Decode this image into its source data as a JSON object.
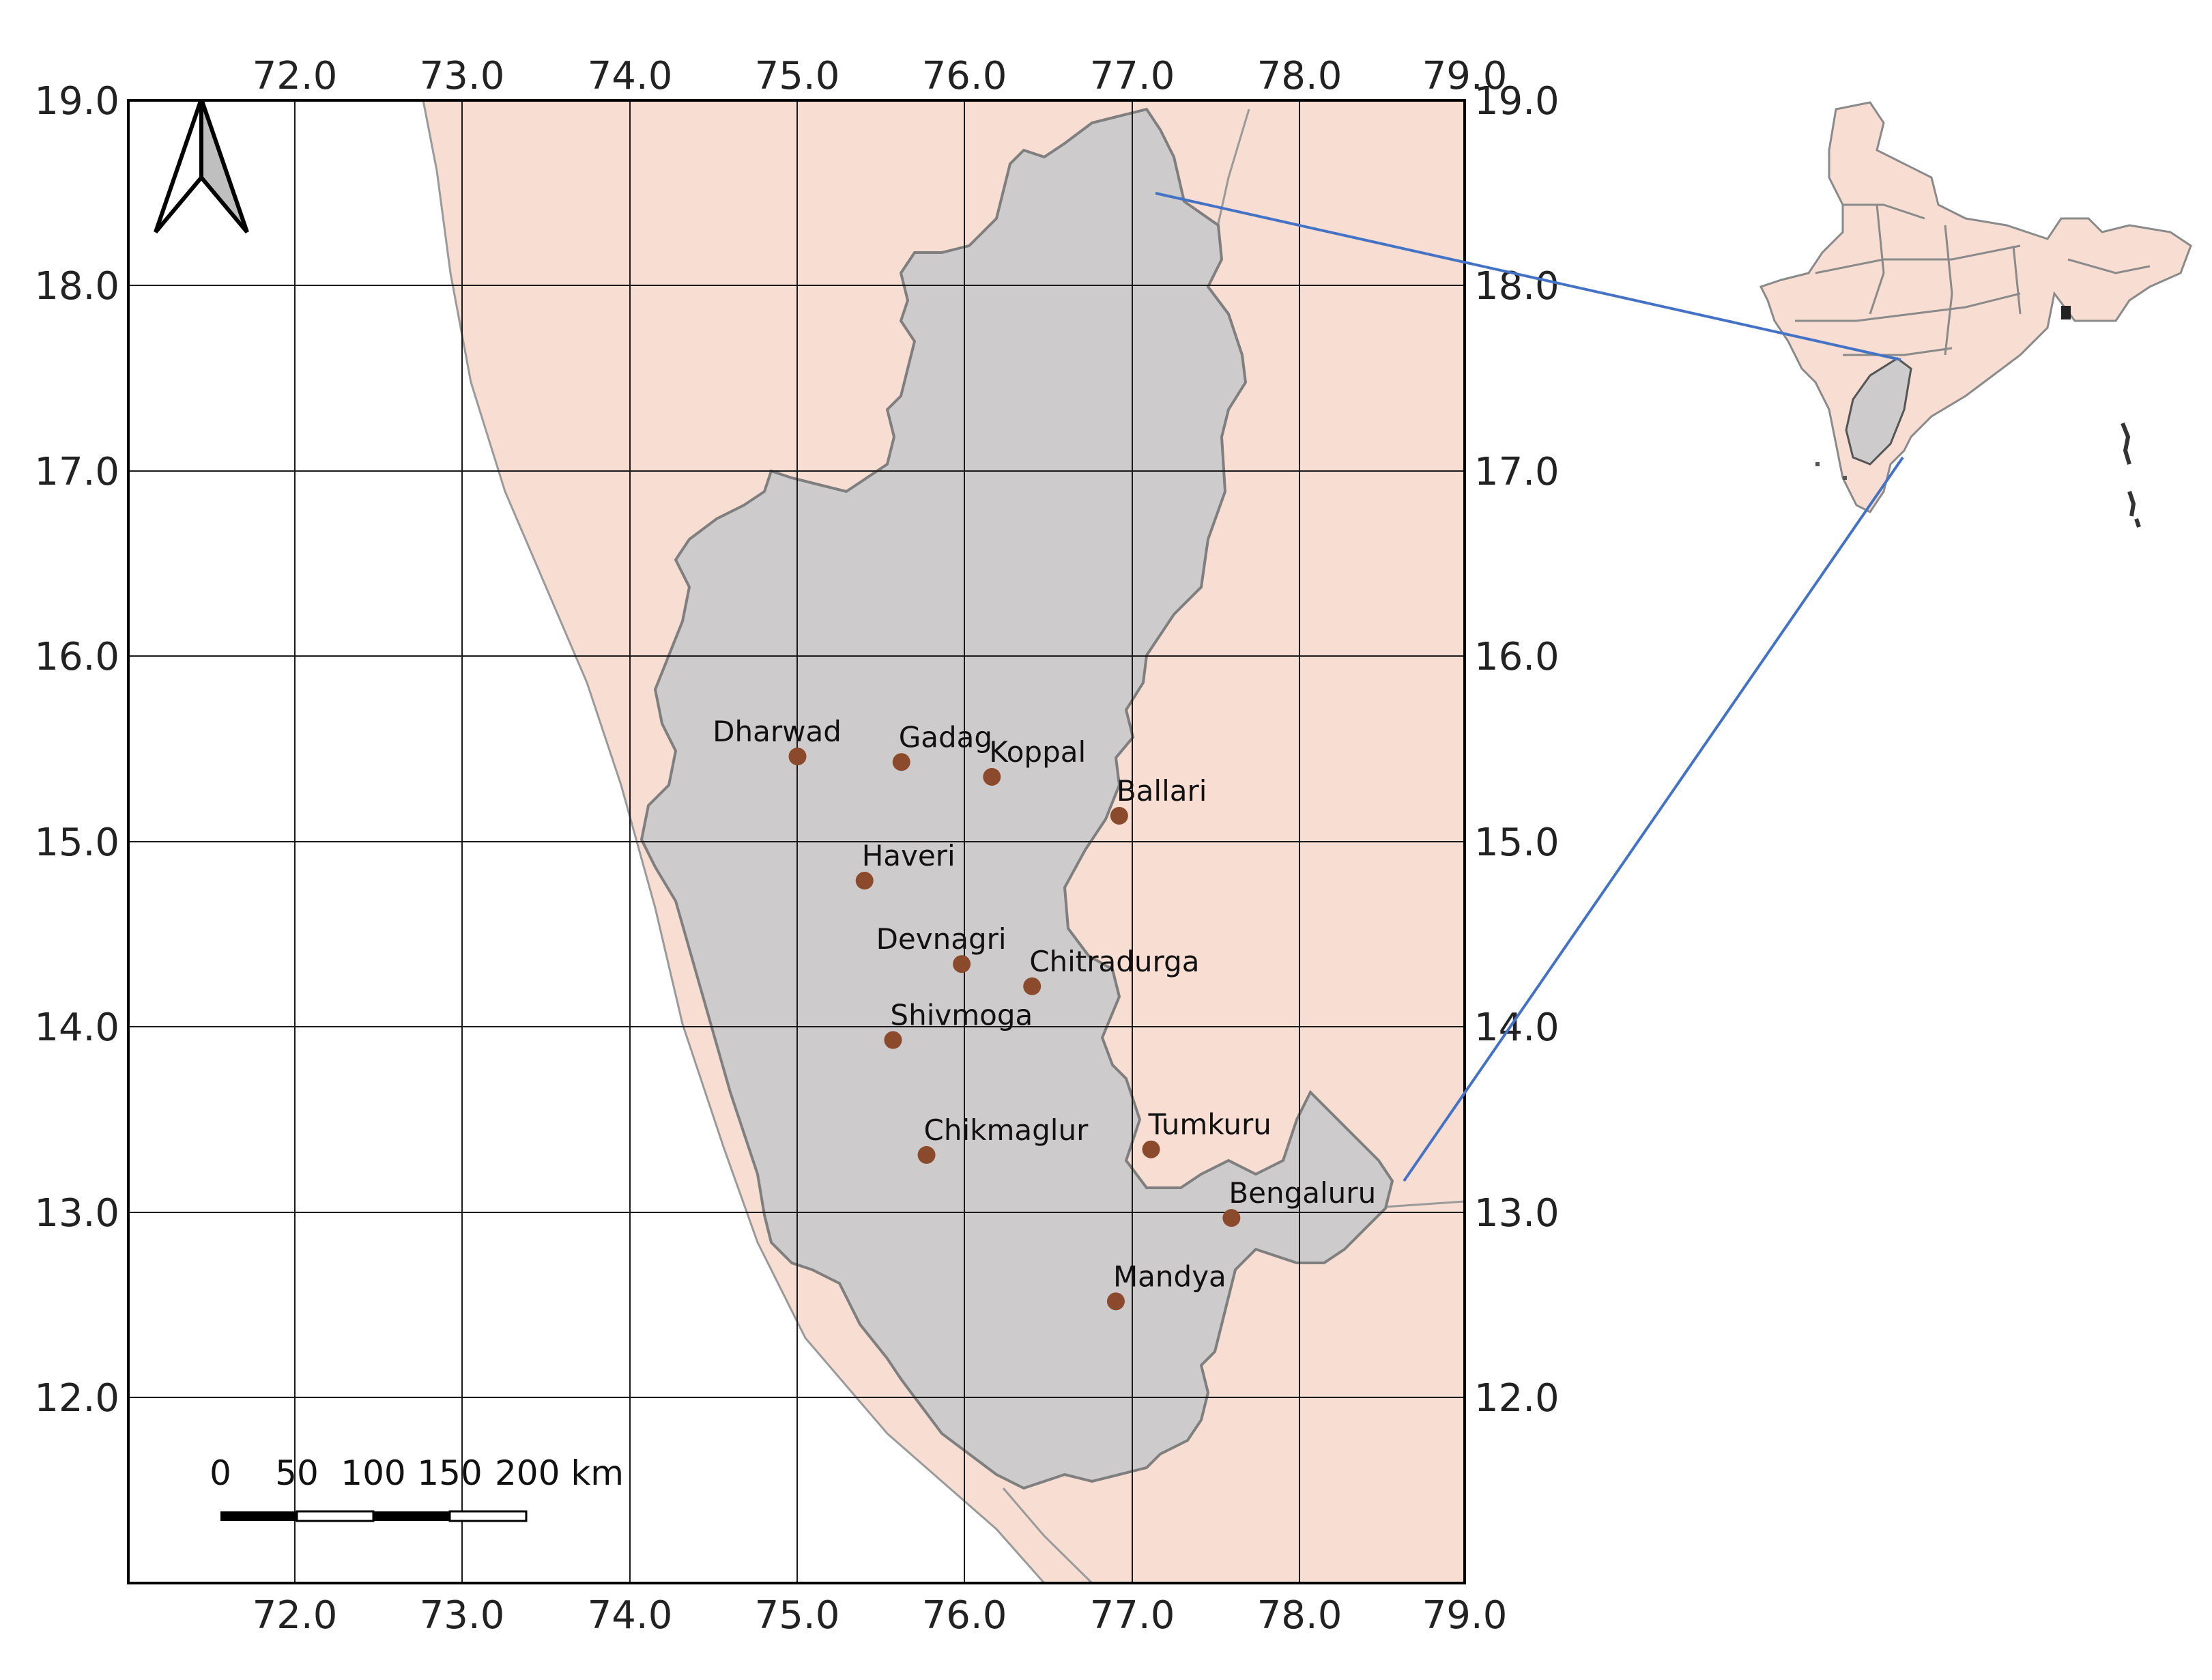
{
  "map": {
    "lon_ticks": [
      "72.0",
      "73.0",
      "74.0",
      "75.0",
      "76.0",
      "77.0",
      "78.0",
      "79.0"
    ],
    "lat_ticks": [
      "19.0",
      "18.0",
      "17.0",
      "16.0",
      "15.0",
      "14.0",
      "13.0",
      "12.0"
    ],
    "cities": [
      {
        "name": "Dharwad",
        "lon": 75.0,
        "lat": 15.46
      },
      {
        "name": "Gadag",
        "lon": 75.62,
        "lat": 15.43
      },
      {
        "name": "Koppal",
        "lon": 76.16,
        "lat": 15.35
      },
      {
        "name": "Ballari",
        "lon": 76.92,
        "lat": 15.14
      },
      {
        "name": "Haveri",
        "lon": 75.4,
        "lat": 14.79
      },
      {
        "name": "Devnagri",
        "lon": 75.98,
        "lat": 14.34
      },
      {
        "name": "Chitradurga",
        "lon": 76.4,
        "lat": 14.22
      },
      {
        "name": "Shivmoga",
        "lon": 75.57,
        "lat": 13.93
      },
      {
        "name": "Chikmaglur",
        "lon": 75.77,
        "lat": 13.31
      },
      {
        "name": "Tumkuru",
        "lon": 77.11,
        "lat": 13.34
      },
      {
        "name": "Bengaluru",
        "lon": 77.59,
        "lat": 12.97
      },
      {
        "name": "Mandya",
        "lon": 76.9,
        "lat": 12.52
      }
    ],
    "scale_bar": {
      "labels": [
        "0",
        "50",
        "100",
        "150",
        "200 km"
      ]
    },
    "colors": {
      "land": "#f7ddd2",
      "state": "#cdcbcb",
      "border": "#888888",
      "city_dot": "#8b4a2b",
      "connector": "#4472c4",
      "grid": "#1a1a1a"
    },
    "north_arrow": "north-arrow-icon",
    "inset": "india-inset-map"
  }
}
